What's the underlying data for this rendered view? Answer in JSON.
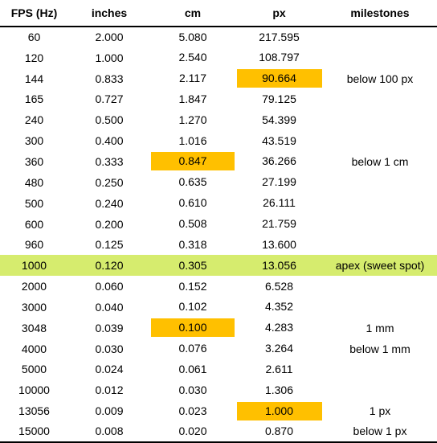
{
  "colors": {
    "highlight": "#ffc000",
    "apex_row": "#d6ec6e",
    "rule": "#000000"
  },
  "table": {
    "headers": {
      "fps": "FPS (Hz)",
      "inches": "inches",
      "cm": "cm",
      "px": "px",
      "milestones": "milestones"
    },
    "rows": [
      {
        "fps": "60",
        "inches": "2.000",
        "cm": "5.080",
        "px": "217.595",
        "milestone": ""
      },
      {
        "fps": "120",
        "inches": "1.000",
        "cm": "2.540",
        "px": "108.797",
        "milestone": ""
      },
      {
        "fps": "144",
        "inches": "0.833",
        "cm": "2.117",
        "px": "90.664",
        "milestone": "below 100 px"
      },
      {
        "fps": "165",
        "inches": "0.727",
        "cm": "1.847",
        "px": "79.125",
        "milestone": ""
      },
      {
        "fps": "240",
        "inches": "0.500",
        "cm": "1.270",
        "px": "54.399",
        "milestone": ""
      },
      {
        "fps": "300",
        "inches": "0.400",
        "cm": "1.016",
        "px": "43.519",
        "milestone": ""
      },
      {
        "fps": "360",
        "inches": "0.333",
        "cm": "0.847",
        "px": "36.266",
        "milestone": "below 1 cm"
      },
      {
        "fps": "480",
        "inches": "0.250",
        "cm": "0.635",
        "px": "27.199",
        "milestone": ""
      },
      {
        "fps": "500",
        "inches": "0.240",
        "cm": "0.610",
        "px": "26.111",
        "milestone": ""
      },
      {
        "fps": "600",
        "inches": "0.200",
        "cm": "0.508",
        "px": "21.759",
        "milestone": ""
      },
      {
        "fps": "960",
        "inches": "0.125",
        "cm": "0.318",
        "px": "13.600",
        "milestone": ""
      },
      {
        "fps": "1000",
        "inches": "0.120",
        "cm": "0.305",
        "px": "13.056",
        "milestone": "apex (sweet spot)"
      },
      {
        "fps": "2000",
        "inches": "0.060",
        "cm": "0.152",
        "px": "6.528",
        "milestone": ""
      },
      {
        "fps": "3000",
        "inches": "0.040",
        "cm": "0.102",
        "px": "4.352",
        "milestone": ""
      },
      {
        "fps": "3048",
        "inches": "0.039",
        "cm": "0.100",
        "px": "4.283",
        "milestone": "1 mm"
      },
      {
        "fps": "4000",
        "inches": "0.030",
        "cm": "0.076",
        "px": "3.264",
        "milestone": "below 1 mm"
      },
      {
        "fps": "5000",
        "inches": "0.024",
        "cm": "0.061",
        "px": "2.611",
        "milestone": ""
      },
      {
        "fps": "10000",
        "inches": "0.012",
        "cm": "0.030",
        "px": "1.306",
        "milestone": ""
      },
      {
        "fps": "13056",
        "inches": "0.009",
        "cm": "0.023",
        "px": "1.000",
        "milestone": "1 px"
      },
      {
        "fps": "15000",
        "inches": "0.008",
        "cm": "0.020",
        "px": "0.870",
        "milestone": "below 1 px"
      }
    ]
  }
}
